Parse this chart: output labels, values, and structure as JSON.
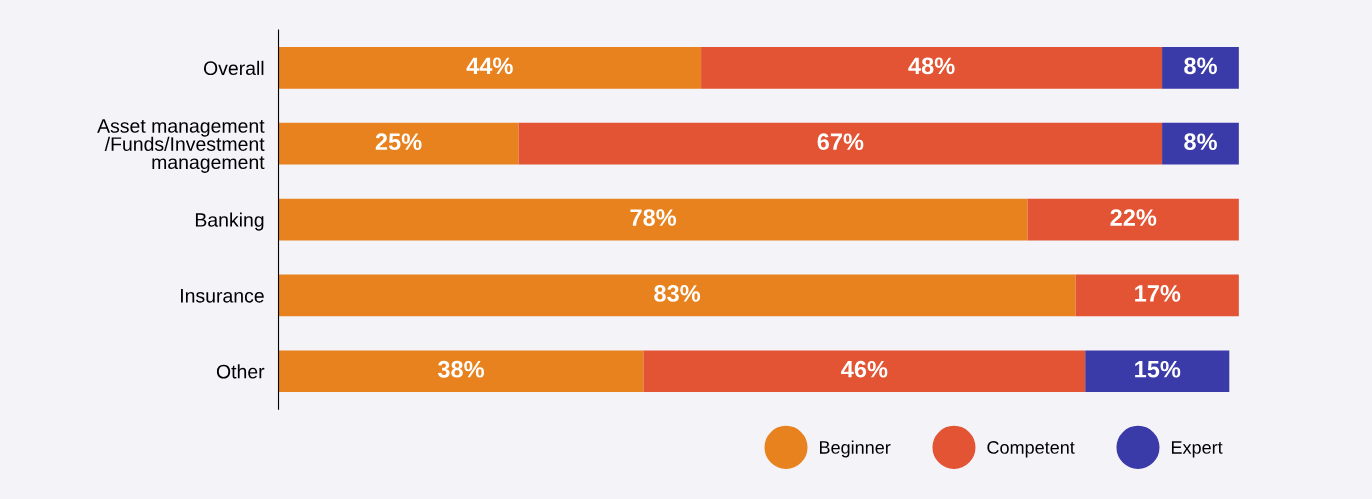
{
  "chart_data": {
    "type": "bar",
    "orientation": "horizontal",
    "stacked": true,
    "legend": "bottom right",
    "grid": false,
    "categories": [
      "Overall",
      "Asset management\n/Funds/Investment\nmanagement",
      "Banking",
      "Insurance",
      "Other"
    ],
    "series": [
      {
        "name": "Beginner",
        "color": "#e8821e",
        "values": [
          44,
          25,
          78,
          83,
          38
        ],
        "value_labels": [
          "44%",
          "25%",
          "78%",
          "83%",
          "38%"
        ]
      },
      {
        "name": "Competent",
        "color": "#e25433",
        "values": [
          48,
          67,
          22,
          17,
          46
        ],
        "value_labels": [
          "48%",
          "67%",
          "22%",
          "17%",
          "46%"
        ]
      },
      {
        "name": "Expert",
        "color": "#3a3aa8",
        "values": [
          8,
          8,
          null,
          null,
          15
        ],
        "value_labels": [
          "8%",
          "8%",
          null,
          null,
          "15%"
        ]
      }
    ]
  }
}
